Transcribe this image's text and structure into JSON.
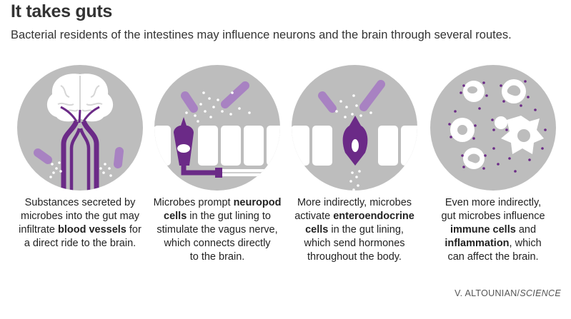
{
  "title": "It takes guts",
  "subtitle": "Bacterial residents of the intestines may influence neurons and the brain through several routes.",
  "colors": {
    "purple": "#6b2a87",
    "light_purple": "#a882c2",
    "circle_gray": "#bdbdbd",
    "white": "#ffffff"
  },
  "panels": [
    {
      "icon": "brain-blood-vessels",
      "caption": {
        "line1": "Substances secreted by",
        "line2": "microbes into the gut may",
        "line3_pre": "infiltrate ",
        "line3_bold": "blood vessels",
        "line3_post": " for",
        "line4": "a direct ride to the brain."
      }
    },
    {
      "icon": "neuropod-cell-vagus-nerve",
      "caption": {
        "line1_pre": "Microbes prompt ",
        "line1_bold": "neuropod",
        "line2_bold": "cells",
        "line2_post": " in the gut lining to",
        "line3": "stimulate the vagus nerve,",
        "line4": "which connects directly",
        "line5": "to the brain."
      }
    },
    {
      "icon": "enteroendocrine-cell",
      "caption": {
        "line1": "More indirectly, microbes",
        "line2_pre": "activate ",
        "line2_bold": "enteroendocrine",
        "line3_bold": "cells",
        "line3_post": " in the gut lining,",
        "line4": "which send hormones",
        "line5": "throughout the body."
      }
    },
    {
      "icon": "immune-cells-inflammation",
      "caption": {
        "line1": "Even more indirectly,",
        "line2": "gut microbes influence",
        "line3_bold": "immune cells",
        "line3_post": " and",
        "line4_bold": "inflammation",
        "line4_post": ", which",
        "line5": "can affect the brain."
      }
    }
  ],
  "credit": {
    "author": "V. ALTOUNIAN/",
    "publication": "SCIENCE"
  }
}
